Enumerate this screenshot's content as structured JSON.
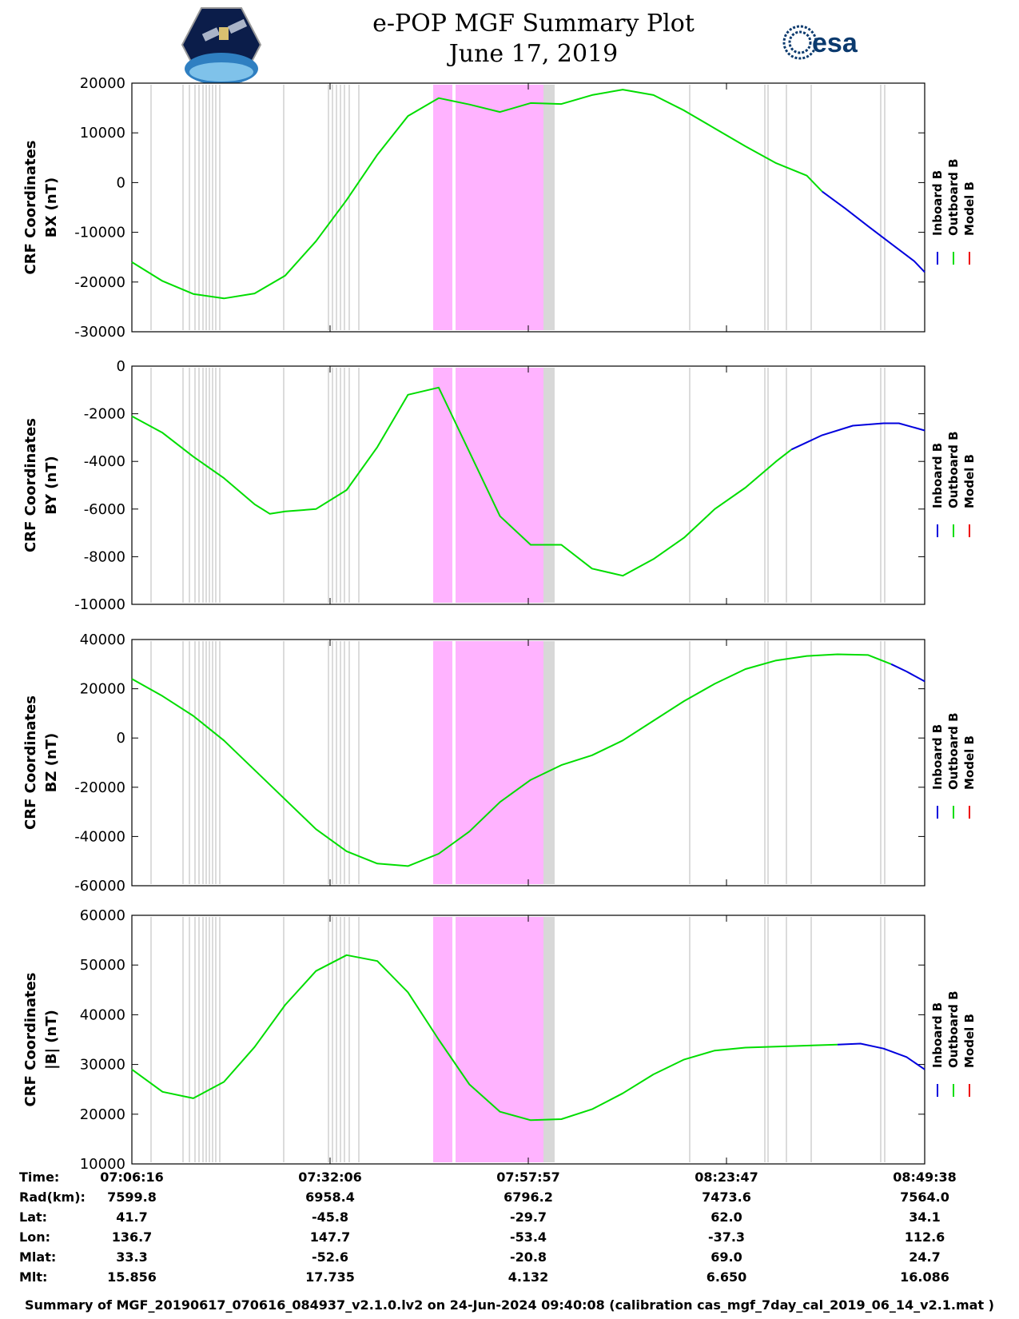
{
  "title": "e-POP MGF Summary Plot",
  "date": "June 17, 2019",
  "logos": {
    "left_icon": "satellite-mission-logo",
    "right_icon": "esa-logo",
    "right_text": "esa"
  },
  "colors": {
    "inboard": "#0000dd",
    "outboard": "#00dd00",
    "model": "#ee0000",
    "band_magenta": "#ffb3ff",
    "band_gray": "#d8d8d8",
    "gridline": "#c8c8c8"
  },
  "legend": [
    "Inboard B",
    "Outboard B",
    "Model B"
  ],
  "time_ticks": [
    "07:06:16",
    "07:32:06",
    "07:57:57",
    "08:23:47",
    "08:49:38"
  ],
  "info_table": {
    "labels": [
      "Time:",
      "Rad(km):",
      "Lat:",
      "Lon:",
      "Mlat:",
      "Mlt:"
    ],
    "columns": [
      [
        "07:06:16",
        "7599.8",
        "41.7",
        "136.7",
        "33.3",
        "15.856"
      ],
      [
        "07:32:06",
        "6958.4",
        "-45.8",
        "147.7",
        "-52.6",
        "17.735"
      ],
      [
        "07:57:57",
        "6796.2",
        "-29.7",
        "-53.4",
        "-20.8",
        "4.132"
      ],
      [
        "08:23:47",
        "7473.6",
        "62.0",
        "-37.3",
        "69.0",
        "6.650"
      ],
      [
        "08:49:38",
        "7564.0",
        "34.1",
        "112.6",
        "24.7",
        "16.086"
      ]
    ]
  },
  "footer": "Summary of MGF_20190617_070616_084937_v2.1.0.lv2 on 24-Jun-2024 09:40:08 (calibration cas_mgf_7day_cal_2019_06_14_v2.1.mat )",
  "chart_data": [
    {
      "type": "line",
      "ylabel": [
        "CRF Coordinates",
        "BX (nT)"
      ],
      "ylim": [
        -30000,
        20000
      ],
      "yticks": [
        "20000",
        "10000",
        "0",
        "-10000",
        "-20000",
        "-30000"
      ],
      "xlim_minutes": [
        0,
        103.37
      ],
      "series": [
        {
          "name": "Outboard B",
          "x": [
            0,
            4,
            8,
            12,
            16,
            20,
            24,
            28,
            32,
            36,
            40,
            44,
            48,
            52,
            56,
            60,
            64,
            68,
            72,
            76,
            80,
            84,
            88,
            90
          ],
          "values": [
            -16000,
            -19800,
            -22400,
            -23300,
            -22300,
            -18700,
            -11800,
            -3500,
            5600,
            13400,
            17000,
            15700,
            14200,
            16000,
            15800,
            17600,
            18700,
            17600,
            14500,
            10900,
            7300,
            3900,
            1400,
            -1800
          ]
        },
        {
          "name": "Inboard B",
          "x": [
            90,
            93,
            96,
            99,
            102,
            103.37
          ],
          "values": [
            -1800,
            -5200,
            -8800,
            -12300,
            -15800,
            -18000
          ]
        }
      ]
    },
    {
      "type": "line",
      "ylabel": [
        "CRF Coordinates",
        "BY (nT)"
      ],
      "ylim": [
        -10000,
        0
      ],
      "yticks": [
        "0",
        "-2000",
        "-4000",
        "-6000",
        "-8000",
        "-10000"
      ],
      "xlim_minutes": [
        0,
        103.37
      ],
      "series": [
        {
          "name": "Outboard B",
          "x": [
            0,
            4,
            8,
            12,
            16,
            18,
            20,
            24,
            28,
            32,
            36,
            40,
            44,
            48,
            52,
            56,
            60,
            64,
            68,
            72,
            76,
            80,
            84,
            86
          ],
          "values": [
            -2100,
            -2800,
            -3800,
            -4700,
            -5800,
            -6200,
            -6100,
            -6000,
            -5200,
            -3400,
            -1200,
            -900,
            -3600,
            -6300,
            -7500,
            -7500,
            -8500,
            -8800,
            -8100,
            -7200,
            -6000,
            -5100,
            -4000,
            -3500
          ]
        },
        {
          "name": "Inboard B",
          "x": [
            86,
            90,
            94,
            98,
            100,
            103.37
          ],
          "values": [
            -3500,
            -2900,
            -2500,
            -2400,
            -2400,
            -2700
          ]
        }
      ]
    },
    {
      "type": "line",
      "ylabel": [
        "CRF Coordinates",
        "BZ (nT)"
      ],
      "ylim": [
        -60000,
        40000
      ],
      "yticks": [
        "40000",
        "20000",
        "0",
        "-20000",
        "-40000",
        "-60000"
      ],
      "xlim_minutes": [
        0,
        103.37
      ],
      "series": [
        {
          "name": "Outboard B",
          "x": [
            0,
            4,
            8,
            12,
            16,
            20,
            24,
            28,
            32,
            36,
            40,
            44,
            48,
            52,
            56,
            60,
            64,
            68,
            72,
            76,
            80,
            84,
            88,
            92,
            96,
            99
          ],
          "values": [
            24000,
            17000,
            9000,
            -1000,
            -13000,
            -25000,
            -37000,
            -46000,
            -51000,
            -52000,
            -47000,
            -38000,
            -26000,
            -17000,
            -11000,
            -7000,
            -1000,
            7000,
            15000,
            22000,
            28000,
            31500,
            33300,
            34000,
            33700,
            30000
          ]
        },
        {
          "name": "Inboard B",
          "x": [
            99,
            101,
            103.37
          ],
          "values": [
            30000,
            27000,
            23000
          ]
        }
      ]
    },
    {
      "type": "line",
      "ylabel": [
        "CRF Coordinates",
        "|B| (nT)"
      ],
      "ylim": [
        10000,
        60000
      ],
      "yticks": [
        "60000",
        "50000",
        "40000",
        "30000",
        "20000",
        "10000"
      ],
      "xlim_minutes": [
        0,
        103.37
      ],
      "series": [
        {
          "name": "Outboard B",
          "x": [
            0,
            4,
            8,
            12,
            16,
            20,
            24,
            28,
            32,
            36,
            40,
            44,
            48,
            52,
            56,
            60,
            64,
            68,
            72,
            76,
            80,
            84,
            88,
            92
          ],
          "values": [
            29000,
            24500,
            23200,
            26500,
            33500,
            42000,
            48800,
            52000,
            50800,
            44500,
            35000,
            26000,
            20500,
            18800,
            19000,
            21000,
            24200,
            28000,
            31000,
            32800,
            33400,
            33600,
            33800,
            34000
          ]
        },
        {
          "name": "Inboard B",
          "x": [
            92,
            95,
            98,
            101,
            103.37
          ],
          "values": [
            34000,
            34200,
            33200,
            31500,
            29000
          ]
        }
      ]
    }
  ]
}
